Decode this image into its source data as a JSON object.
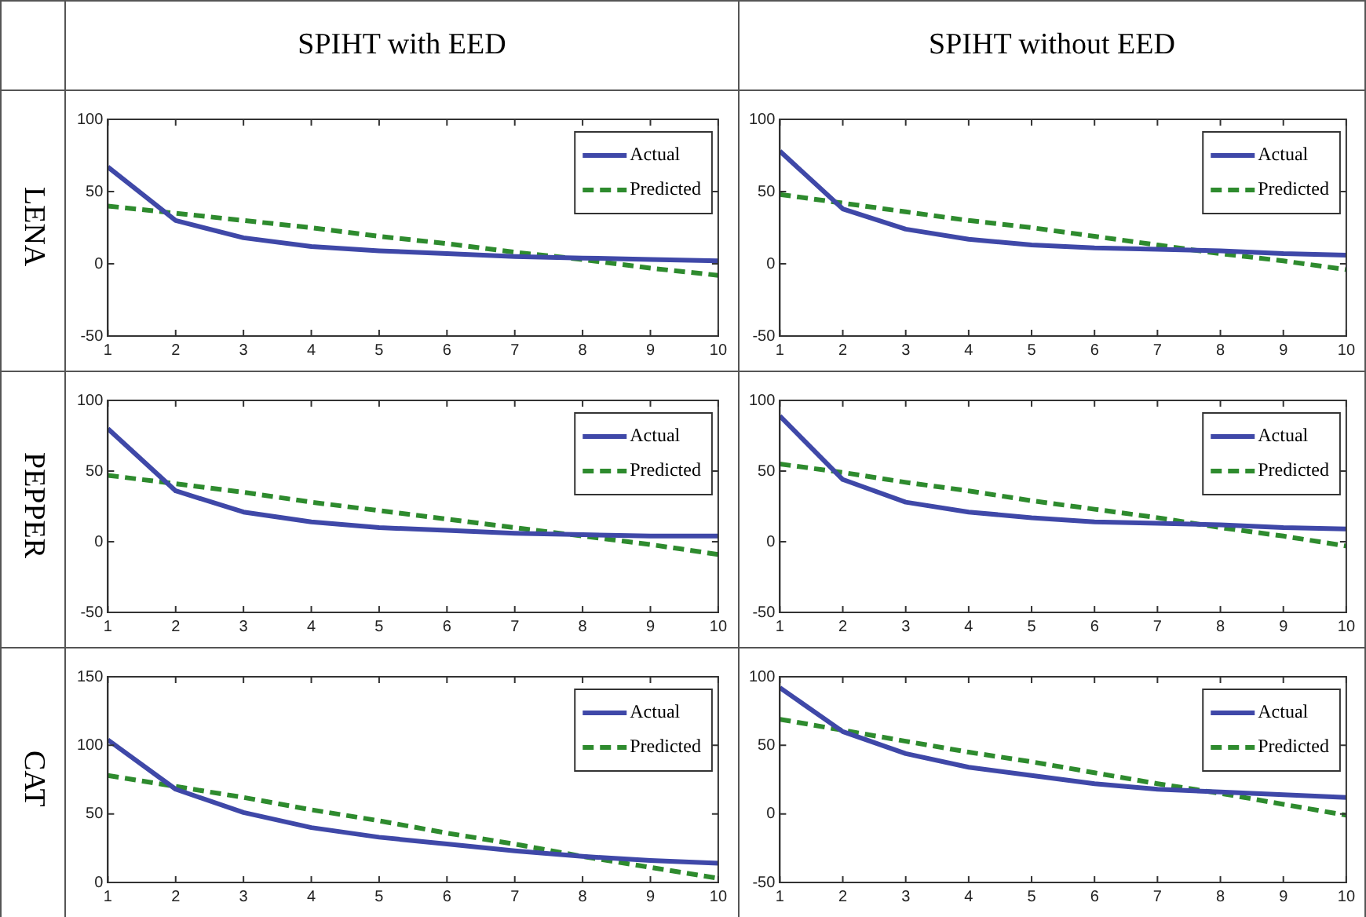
{
  "chart_data": [
    {
      "type": "line",
      "title": "SPIHT with EED",
      "ylabel": "LENA",
      "x": [
        1,
        2,
        3,
        4,
        5,
        6,
        7,
        8,
        9,
        10
      ],
      "xlim": [
        1,
        10
      ],
      "xticks": [
        1,
        2,
        3,
        4,
        5,
        6,
        7,
        8,
        9,
        10
      ],
      "ylim": [
        -50,
        100
      ],
      "yticks": [
        -50,
        0,
        50,
        100
      ],
      "grid": false,
      "legend": "top right",
      "series": [
        {
          "name": "Actual",
          "color": "#3f48a8",
          "line_style": "solid",
          "values": [
            67,
            30,
            18,
            12,
            9,
            7,
            5,
            4,
            3,
            2
          ]
        },
        {
          "name": "Predicted",
          "color": "#2e8b2e",
          "line_style": "dashed",
          "values": [
            40,
            35,
            30,
            25,
            19,
            14,
            8,
            3,
            -3,
            -8
          ]
        }
      ]
    },
    {
      "type": "line",
      "title": "SPIHT without EED",
      "x": [
        1,
        2,
        3,
        4,
        5,
        6,
        7,
        8,
        9,
        10
      ],
      "xlim": [
        1,
        10
      ],
      "xticks": [
        1,
        2,
        3,
        4,
        5,
        6,
        7,
        8,
        9,
        10
      ],
      "ylim": [
        -50,
        100
      ],
      "yticks": [
        -50,
        0,
        50,
        100
      ],
      "grid": false,
      "legend": "top right",
      "series": [
        {
          "name": "Actual",
          "color": "#3f48a8",
          "line_style": "solid",
          "values": [
            78,
            38,
            24,
            17,
            13,
            11,
            10,
            9,
            7,
            6
          ]
        },
        {
          "name": "Predicted",
          "color": "#2e8b2e",
          "line_style": "dashed",
          "values": [
            48,
            42,
            36,
            30,
            25,
            19,
            13,
            7,
            2,
            -4
          ]
        }
      ]
    },
    {
      "type": "line",
      "ylabel": "PEPPER",
      "x": [
        1,
        2,
        3,
        4,
        5,
        6,
        7,
        8,
        9,
        10
      ],
      "xlim": [
        1,
        10
      ],
      "xticks": [
        1,
        2,
        3,
        4,
        5,
        6,
        7,
        8,
        9,
        10
      ],
      "ylim": [
        -50,
        100
      ],
      "yticks": [
        -50,
        0,
        50,
        100
      ],
      "grid": false,
      "legend": "top right",
      "series": [
        {
          "name": "Actual",
          "color": "#3f48a8",
          "line_style": "solid",
          "values": [
            80,
            36,
            21,
            14,
            10,
            8,
            6,
            5,
            4,
            4
          ]
        },
        {
          "name": "Predicted",
          "color": "#2e8b2e",
          "line_style": "dashed",
          "values": [
            47,
            41,
            35,
            28,
            22,
            16,
            10,
            4,
            -2,
            -9
          ]
        }
      ]
    },
    {
      "type": "line",
      "x": [
        1,
        2,
        3,
        4,
        5,
        6,
        7,
        8,
        9,
        10
      ],
      "xlim": [
        1,
        10
      ],
      "xticks": [
        1,
        2,
        3,
        4,
        5,
        6,
        7,
        8,
        9,
        10
      ],
      "ylim": [
        -50,
        100
      ],
      "yticks": [
        -50,
        0,
        50,
        100
      ],
      "grid": false,
      "legend": "top right",
      "series": [
        {
          "name": "Actual",
          "color": "#3f48a8",
          "line_style": "solid",
          "values": [
            89,
            44,
            28,
            21,
            17,
            14,
            13,
            12,
            10,
            9
          ]
        },
        {
          "name": "Predicted",
          "color": "#2e8b2e",
          "line_style": "dashed",
          "values": [
            55,
            49,
            42,
            36,
            29,
            23,
            17,
            10,
            4,
            -3
          ]
        }
      ]
    },
    {
      "type": "line",
      "ylabel": "CAT",
      "x": [
        1,
        2,
        3,
        4,
        5,
        6,
        7,
        8,
        9,
        10
      ],
      "xlim": [
        1,
        10
      ],
      "xticks": [
        1,
        2,
        3,
        4,
        5,
        6,
        7,
        8,
        9,
        10
      ],
      "ylim": [
        0,
        150
      ],
      "yticks": [
        0,
        50,
        100,
        150
      ],
      "grid": false,
      "legend": "top right",
      "series": [
        {
          "name": "Actual",
          "color": "#3f48a8",
          "line_style": "solid",
          "values": [
            104,
            68,
            51,
            40,
            33,
            28,
            23,
            19,
            16,
            14
          ]
        },
        {
          "name": "Predicted",
          "color": "#2e8b2e",
          "line_style": "dashed",
          "values": [
            78,
            70,
            62,
            53,
            45,
            36,
            28,
            19,
            11,
            3
          ]
        }
      ]
    },
    {
      "type": "line",
      "x": [
        1,
        2,
        3,
        4,
        5,
        6,
        7,
        8,
        9,
        10
      ],
      "xlim": [
        1,
        10
      ],
      "xticks": [
        1,
        2,
        3,
        4,
        5,
        6,
        7,
        8,
        9,
        10
      ],
      "ylim": [
        -50,
        100
      ],
      "yticks": [
        -50,
        0,
        50,
        100
      ],
      "grid": false,
      "legend": "top right",
      "series": [
        {
          "name": "Actual",
          "color": "#3f48a8",
          "line_style": "solid",
          "values": [
            92,
            60,
            44,
            34,
            28,
            22,
            18,
            16,
            14,
            12
          ]
        },
        {
          "name": "Predicted",
          "color": "#2e8b2e",
          "line_style": "dashed",
          "values": [
            69,
            61,
            53,
            45,
            38,
            30,
            22,
            15,
            7,
            -1
          ]
        }
      ]
    }
  ]
}
